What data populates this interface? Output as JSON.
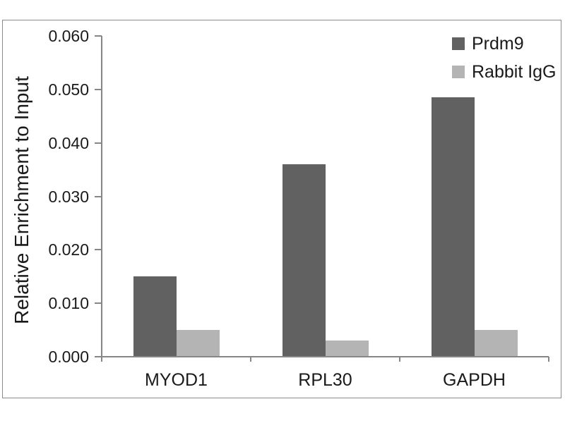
{
  "chart_data": {
    "type": "bar",
    "title": "",
    "xlabel": "",
    "ylabel": "Relative Enrichment to Input",
    "categories": [
      "MYOD1",
      "RPL30",
      "GAPDH"
    ],
    "series": [
      {
        "name": "Prdm9",
        "color": "#616161",
        "values": [
          0.015,
          0.036,
          0.0485
        ]
      },
      {
        "name": "Rabbit IgG",
        "color": "#b4b4b4",
        "values": [
          0.005,
          0.003,
          0.005
        ]
      }
    ],
    "ylim": [
      0,
      0.06
    ],
    "y_ticks": [
      "0.000",
      "0.010",
      "0.020",
      "0.030",
      "0.040",
      "0.050",
      "0.060"
    ],
    "y_tick_values": [
      0,
      0.01,
      0.02,
      0.03,
      0.04,
      0.05,
      0.06
    ],
    "grid": false,
    "legend_position": "top-right",
    "axis_color": "#868686",
    "frame_color": "#8a8a8a",
    "text_color": "#1a1a1a"
  }
}
